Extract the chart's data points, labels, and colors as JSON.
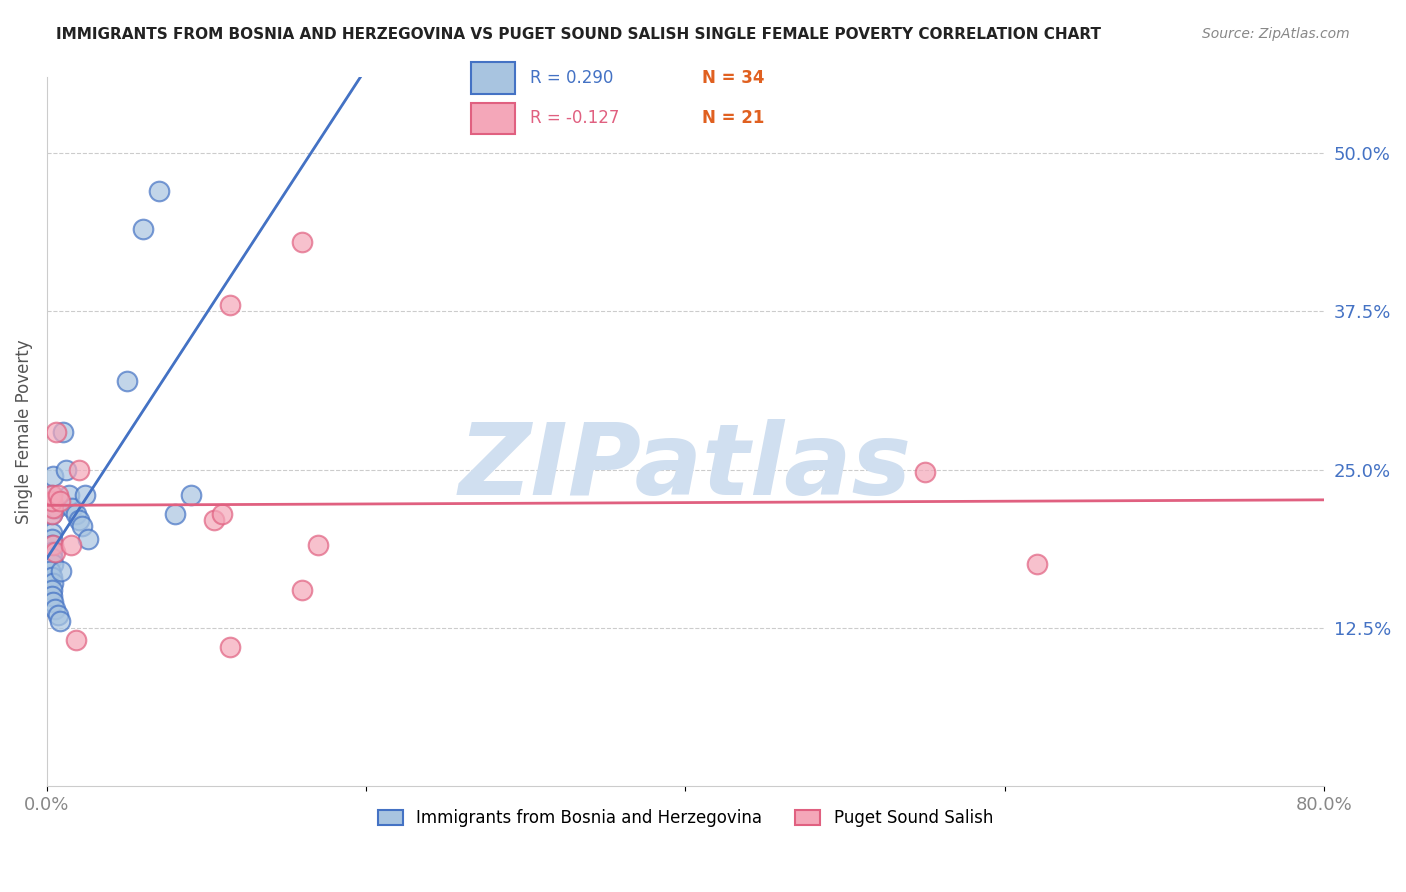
{
  "title": "IMMIGRANTS FROM BOSNIA AND HERZEGOVINA VS PUGET SOUND SALISH SINGLE FEMALE POVERTY CORRELATION CHART",
  "source": "Source: ZipAtlas.com",
  "xlabel": "",
  "ylabel": "Single Female Poverty",
  "xlim": [
    0.0,
    0.8
  ],
  "ylim": [
    0.0,
    0.56
  ],
  "xticks": [
    0.0,
    0.2,
    0.4,
    0.6,
    0.8
  ],
  "xticklabels": [
    "0.0%",
    "",
    "",
    "",
    "80.0%"
  ],
  "yticks_right": [
    0.125,
    0.25,
    0.375,
    0.5
  ],
  "ytick_right_labels": [
    "12.5%",
    "25.0%",
    "37.5%",
    "50.0%"
  ],
  "legend_r1": "R = 0.290",
  "legend_n1": "N = 34",
  "legend_r2": "R = -0.127",
  "legend_n2": "N = 21",
  "blue_color": "#a8c4e0",
  "blue_line_color": "#4472c4",
  "pink_color": "#f4a7b9",
  "pink_line_color": "#e06080",
  "watermark": "ZIPatlas",
  "watermark_color": "#d0dff0",
  "blue_x": [
    0.003,
    0.006,
    0.003,
    0.004,
    0.003,
    0.003,
    0.003,
    0.003,
    0.003,
    0.004,
    0.002,
    0.003,
    0.004,
    0.003,
    0.003,
    0.004,
    0.005,
    0.007,
    0.008,
    0.009,
    0.01,
    0.012,
    0.014,
    0.016,
    0.018,
    0.02,
    0.022,
    0.024,
    0.026,
    0.05,
    0.06,
    0.07,
    0.08,
    0.09
  ],
  "blue_y": [
    0.215,
    0.22,
    0.23,
    0.245,
    0.2,
    0.195,
    0.19,
    0.185,
    0.18,
    0.175,
    0.17,
    0.165,
    0.16,
    0.155,
    0.15,
    0.145,
    0.14,
    0.135,
    0.13,
    0.17,
    0.28,
    0.25,
    0.23,
    0.22,
    0.215,
    0.21,
    0.205,
    0.23,
    0.195,
    0.32,
    0.44,
    0.47,
    0.215,
    0.23
  ],
  "pink_x": [
    0.003,
    0.004,
    0.003,
    0.003,
    0.004,
    0.005,
    0.006,
    0.007,
    0.008,
    0.015,
    0.018,
    0.02,
    0.17,
    0.16,
    0.105,
    0.55,
    0.62,
    0.115,
    0.16,
    0.11,
    0.115
  ],
  "pink_y": [
    0.215,
    0.22,
    0.225,
    0.23,
    0.19,
    0.185,
    0.28,
    0.23,
    0.225,
    0.19,
    0.115,
    0.25,
    0.19,
    0.155,
    0.21,
    0.248,
    0.175,
    0.38,
    0.43,
    0.215,
    0.11
  ]
}
